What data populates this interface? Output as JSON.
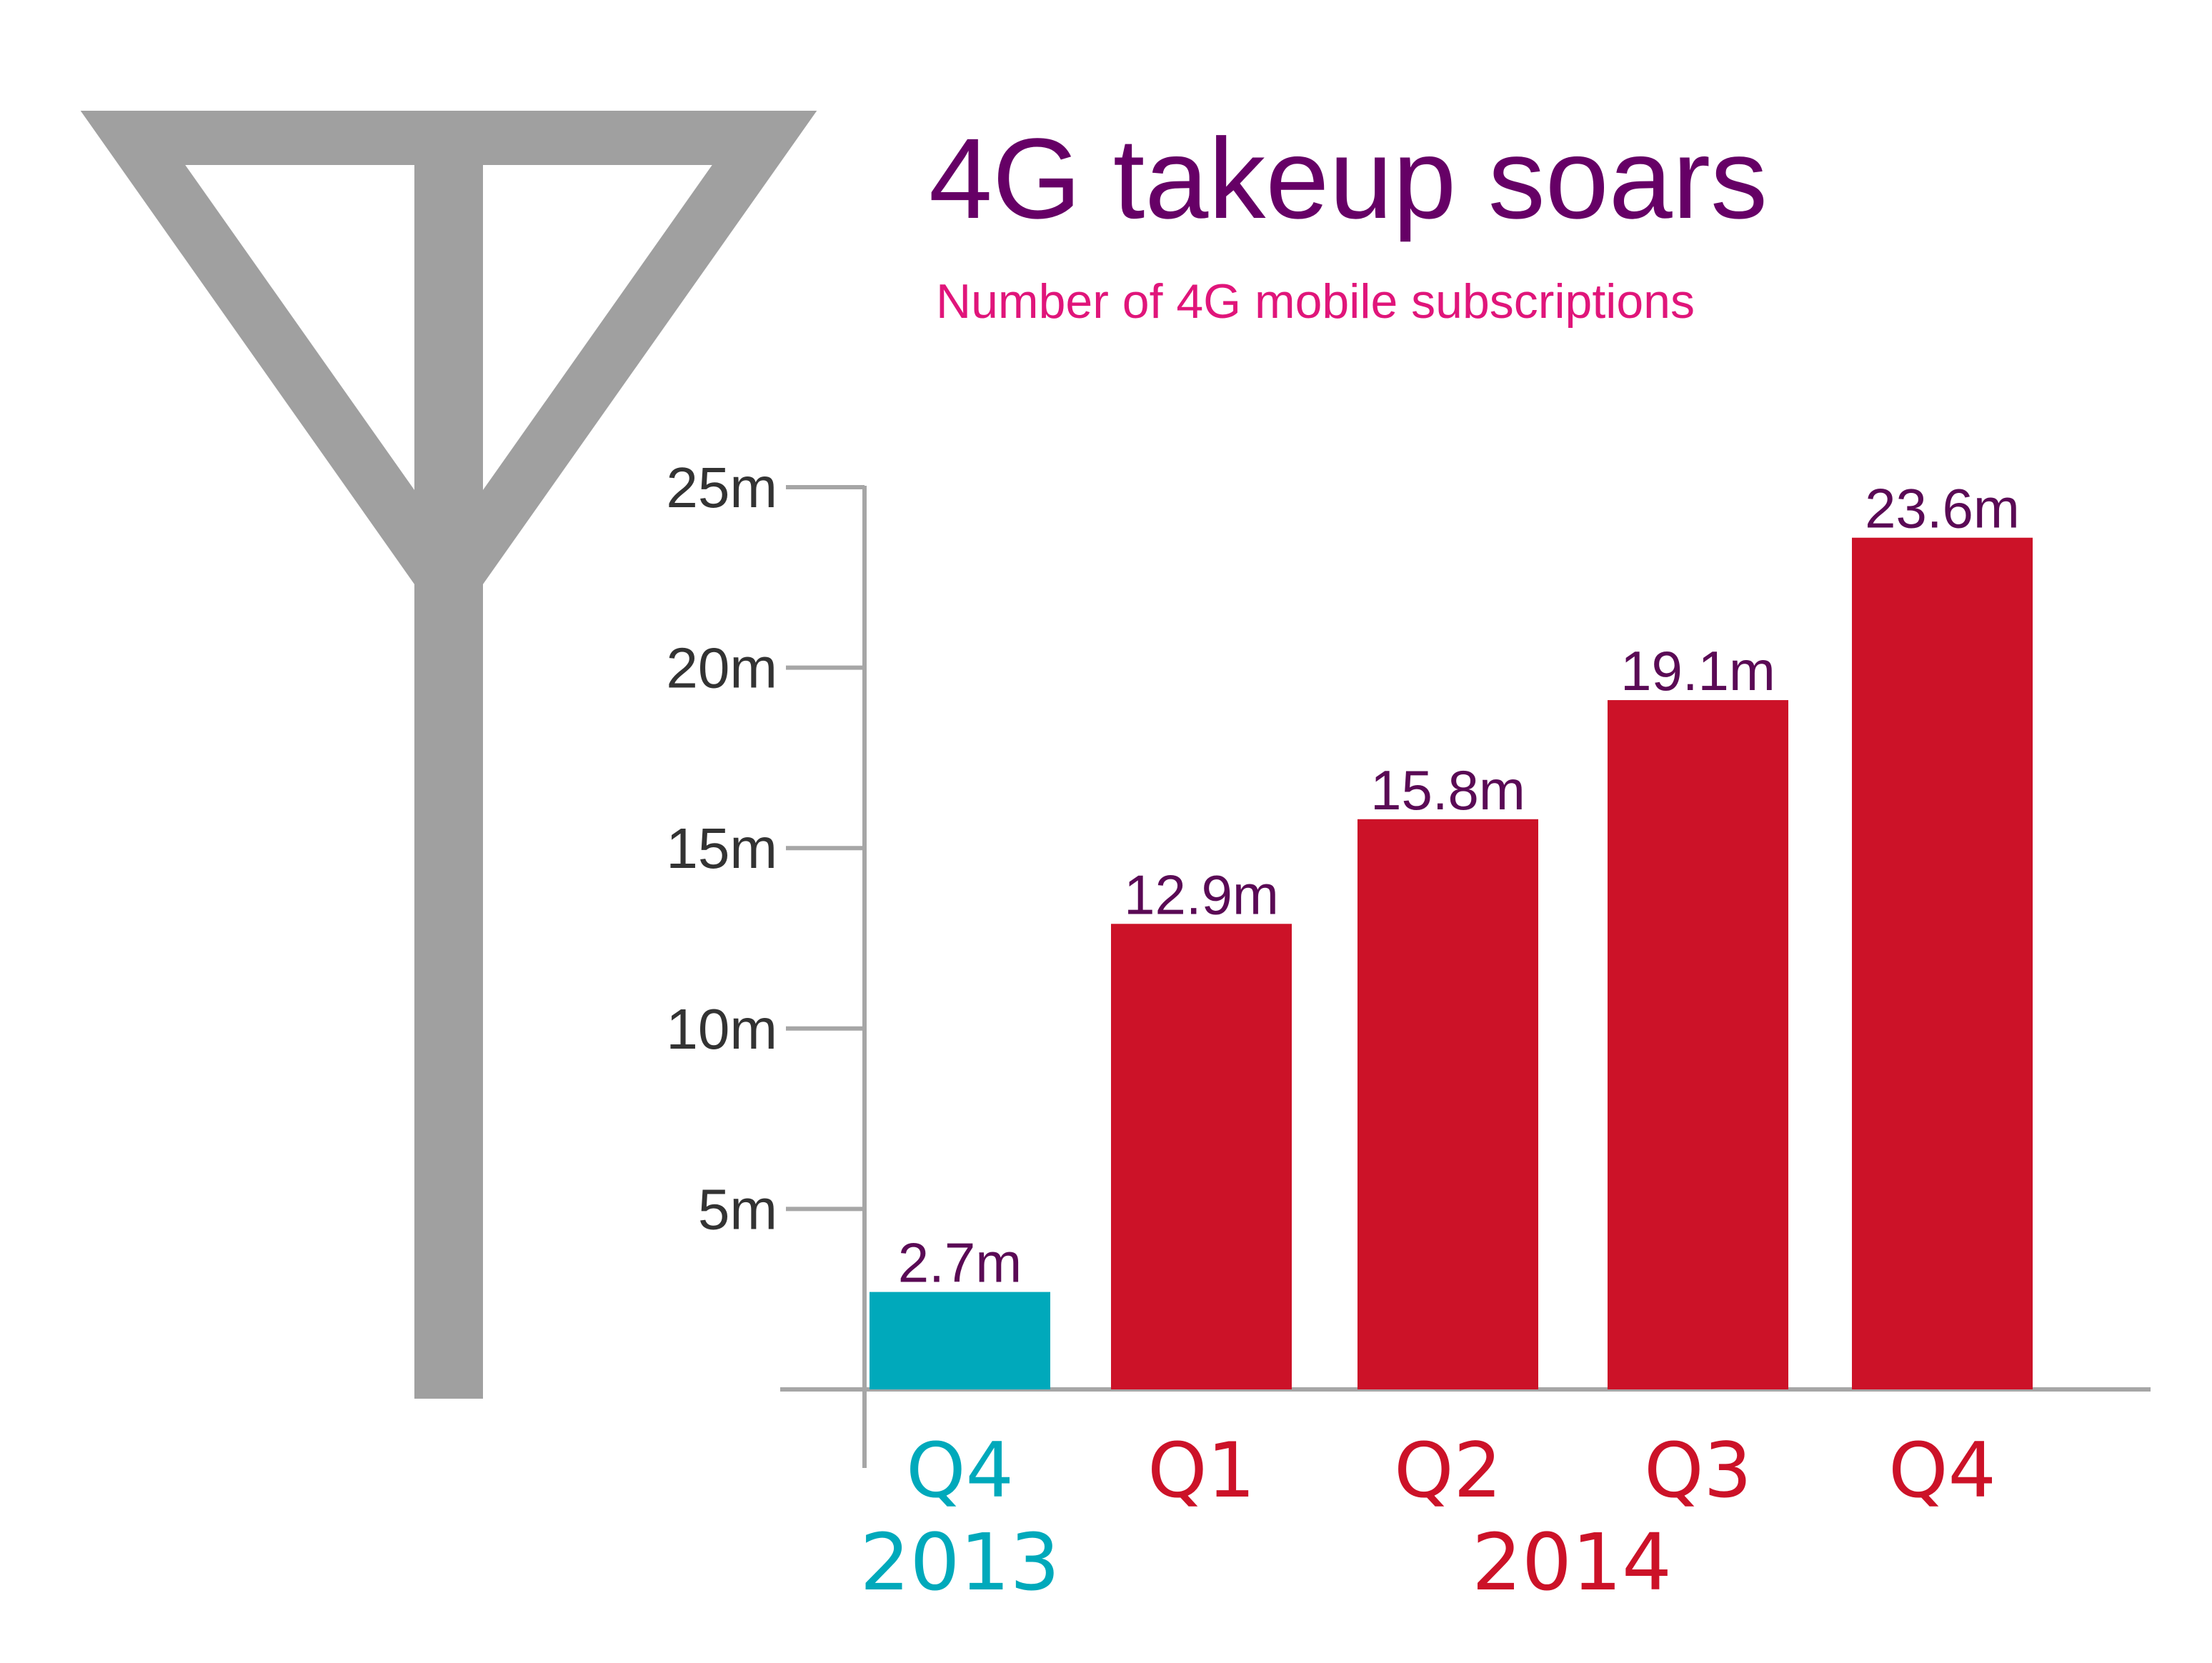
{
  "colors": {
    "title": "#660066",
    "subtitle": "#e0157a",
    "tick_text": "#333333",
    "axis": "#a6a6a6",
    "value_label": "#5a0a55",
    "bar_2013": "#00a9bb",
    "bar_2014": "#cc1228",
    "antenna": "#a0a0a0"
  },
  "icons": {
    "antenna": "antenna-icon"
  },
  "chart_data": {
    "type": "bar",
    "title": "4G takeup soars",
    "subtitle": "Number of 4G mobile subscriptions",
    "xlabel": "",
    "ylabel": "",
    "ylim": [
      0,
      25
    ],
    "y_ticks": [
      {
        "value": 5,
        "label": "5m"
      },
      {
        "value": 10,
        "label": "10m"
      },
      {
        "value": 15,
        "label": "15m"
      },
      {
        "value": 20,
        "label": "20m"
      },
      {
        "value": 25,
        "label": "25m"
      }
    ],
    "categories": [
      "Q4",
      "Q1",
      "Q2",
      "Q3",
      "Q4"
    ],
    "category_years": [
      "2013",
      "2014",
      "2014",
      "2014",
      "2014"
    ],
    "values": [
      2.7,
      12.9,
      15.8,
      19.1,
      23.6
    ],
    "value_labels": [
      "2.7m",
      "12.9m",
      "15.8m",
      "19.1m",
      "23.6m"
    ],
    "year_groups": [
      {
        "label": "2013",
        "from": 0,
        "to": 0
      },
      {
        "label": "2014",
        "from": 1,
        "to": 4
      }
    ],
    "grid": false,
    "legend": "none"
  }
}
